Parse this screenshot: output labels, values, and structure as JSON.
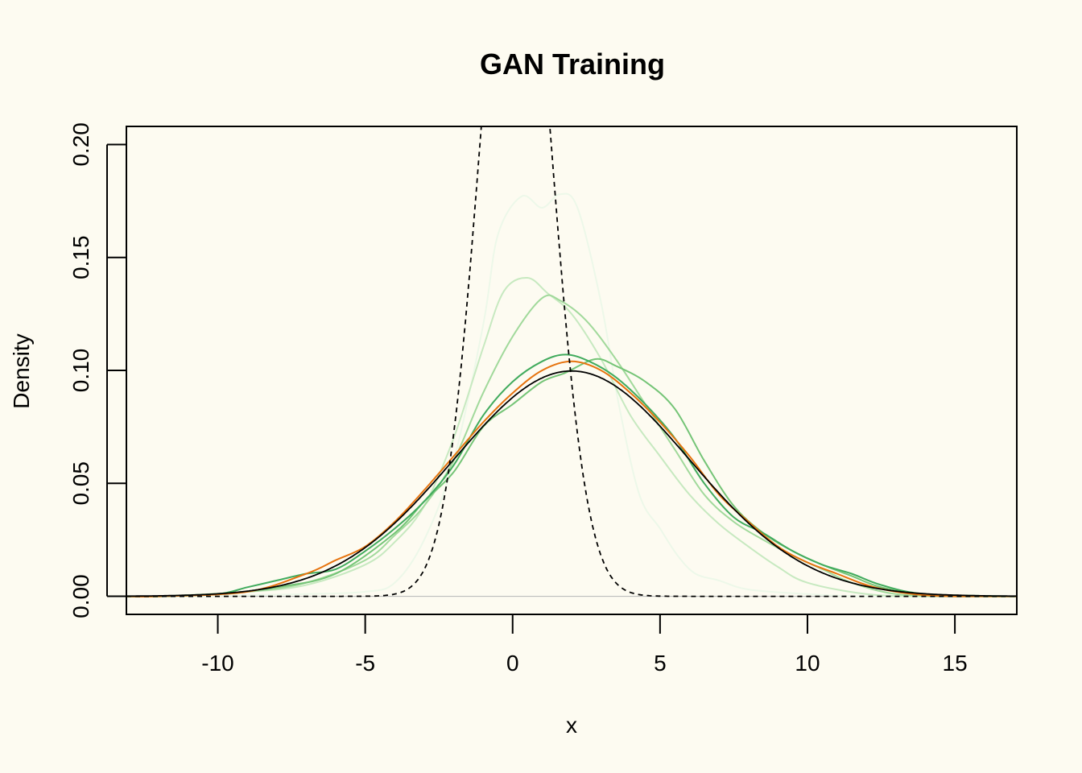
{
  "chart_data": {
    "type": "line",
    "title": "GAN Training",
    "xlabel": "x",
    "ylabel": "Density",
    "xlim": [
      -13.1,
      17.1
    ],
    "ylim": [
      -0.008,
      0.208
    ],
    "x_ticks": [
      -10,
      -5,
      0,
      5,
      10,
      15
    ],
    "x_tick_labels": [
      "-10",
      "-5",
      "0",
      "5",
      "10",
      "15"
    ],
    "y_ticks": [
      0,
      0.05,
      0.1,
      0.15,
      0.2
    ],
    "y_tick_labels": [
      "0.00",
      "0.05",
      "0.10",
      "0.15",
      "0.20"
    ],
    "grid": false,
    "legend": "none",
    "series": [
      {
        "role": "generator-iteration-1",
        "style": "solid",
        "color": "#edf8e9",
        "points": [
          [
            -11,
            0
          ],
          [
            -9,
            0.0005
          ],
          [
            -7,
            0.001
          ],
          [
            -5,
            0.002
          ],
          [
            -4,
            0.006
          ],
          [
            -3,
            0.025
          ],
          [
            -2,
            0.06
          ],
          [
            -1,
            0.12
          ],
          [
            -0.5,
            0.16
          ],
          [
            0.3,
            0.177
          ],
          [
            1,
            0.172
          ],
          [
            1.6,
            0.178
          ],
          [
            2.2,
            0.172
          ],
          [
            3,
            0.13
          ],
          [
            3.6,
            0.085
          ],
          [
            4.3,
            0.045
          ],
          [
            5,
            0.03
          ],
          [
            5.6,
            0.018
          ],
          [
            6.2,
            0.01
          ],
          [
            7,
            0.007
          ],
          [
            8,
            0.003
          ],
          [
            10,
            0.001
          ],
          [
            12,
            0
          ]
        ]
      },
      {
        "role": "generator-iteration-2",
        "style": "solid",
        "color": "#c7e9c0",
        "points": [
          [
            -12,
            0
          ],
          [
            -9,
            0.002
          ],
          [
            -7,
            0.005
          ],
          [
            -5,
            0.014
          ],
          [
            -4,
            0.024
          ],
          [
            -3,
            0.04
          ],
          [
            -2,
            0.07
          ],
          [
            -1,
            0.11
          ],
          [
            -0.3,
            0.135
          ],
          [
            0.5,
            0.141
          ],
          [
            1.2,
            0.134
          ],
          [
            2,
            0.125
          ],
          [
            3,
            0.105
          ],
          [
            4,
            0.08
          ],
          [
            5,
            0.062
          ],
          [
            6,
            0.045
          ],
          [
            7,
            0.032
          ],
          [
            8,
            0.022
          ],
          [
            9,
            0.013
          ],
          [
            10,
            0.006
          ],
          [
            12,
            0.001
          ],
          [
            14,
            0
          ]
        ]
      },
      {
        "role": "generator-iteration-3",
        "style": "solid",
        "color": "#a1d99b",
        "points": [
          [
            -12,
            0
          ],
          [
            -9,
            0.002
          ],
          [
            -7,
            0.006
          ],
          [
            -5,
            0.016
          ],
          [
            -4,
            0.027
          ],
          [
            -3,
            0.04
          ],
          [
            -2,
            0.06
          ],
          [
            -1,
            0.09
          ],
          [
            0,
            0.115
          ],
          [
            1,
            0.132
          ],
          [
            1.6,
            0.131
          ],
          [
            2.5,
            0.122
          ],
          [
            3.5,
            0.105
          ],
          [
            4.5,
            0.085
          ],
          [
            5.5,
            0.065
          ],
          [
            6.5,
            0.045
          ],
          [
            7.5,
            0.033
          ],
          [
            8.5,
            0.025
          ],
          [
            9.5,
            0.018
          ],
          [
            10.5,
            0.012
          ],
          [
            11.5,
            0.006
          ],
          [
            13,
            0.001
          ],
          [
            15,
            0
          ]
        ]
      },
      {
        "role": "generator-iteration-4",
        "style": "solid",
        "color": "#74c476",
        "points": [
          [
            -12,
            0
          ],
          [
            -10,
            0.001
          ],
          [
            -8,
            0.004
          ],
          [
            -6,
            0.01
          ],
          [
            -4,
            0.028
          ],
          [
            -3,
            0.042
          ],
          [
            -2,
            0.055
          ],
          [
            -1,
            0.075
          ],
          [
            0,
            0.085
          ],
          [
            1,
            0.095
          ],
          [
            1.8,
            0.099
          ],
          [
            2.8,
            0.105
          ],
          [
            3.5,
            0.102
          ],
          [
            4.5,
            0.095
          ],
          [
            5.5,
            0.083
          ],
          [
            6.5,
            0.06
          ],
          [
            7.5,
            0.04
          ],
          [
            8.5,
            0.028
          ],
          [
            9.5,
            0.02
          ],
          [
            10.5,
            0.014
          ],
          [
            11.5,
            0.009
          ],
          [
            12.5,
            0.004
          ],
          [
            14,
            0.001
          ],
          [
            16,
            0
          ]
        ]
      },
      {
        "role": "generator-iteration-5",
        "style": "solid",
        "color": "#41ab5d",
        "points": [
          [
            -12,
            0
          ],
          [
            -10,
            0.001
          ],
          [
            -9,
            0.004
          ],
          [
            -8,
            0.007
          ],
          [
            -7,
            0.01
          ],
          [
            -6,
            0.012
          ],
          [
            -5,
            0.02
          ],
          [
            -4,
            0.03
          ],
          [
            -3,
            0.042
          ],
          [
            -2,
            0.058
          ],
          [
            -1,
            0.08
          ],
          [
            0,
            0.095
          ],
          [
            1,
            0.104
          ],
          [
            1.8,
            0.107
          ],
          [
            2.6,
            0.104
          ],
          [
            3.5,
            0.097
          ],
          [
            4.5,
            0.085
          ],
          [
            5.5,
            0.07
          ],
          [
            6.5,
            0.05
          ],
          [
            7.5,
            0.035
          ],
          [
            8.5,
            0.028
          ],
          [
            9.5,
            0.02
          ],
          [
            10.5,
            0.014
          ],
          [
            11.5,
            0.01
          ],
          [
            12.5,
            0.005
          ],
          [
            14,
            0.001
          ],
          [
            17,
            0
          ]
        ]
      },
      {
        "role": "generator-final",
        "style": "solid",
        "color": "#e6730e",
        "points": [
          [
            -12,
            0
          ],
          [
            -9,
            0.002
          ],
          [
            -7,
            0.01
          ],
          [
            -6,
            0.016
          ],
          [
            -5,
            0.022
          ],
          [
            -4,
            0.033
          ],
          [
            -3,
            0.047
          ],
          [
            -2,
            0.062
          ],
          [
            -1,
            0.077
          ],
          [
            0,
            0.09
          ],
          [
            1,
            0.1
          ],
          [
            2,
            0.104
          ],
          [
            3,
            0.1
          ],
          [
            4,
            0.09
          ],
          [
            5,
            0.077
          ],
          [
            6,
            0.062
          ],
          [
            7,
            0.045
          ],
          [
            8,
            0.033
          ],
          [
            9,
            0.022
          ],
          [
            10,
            0.015
          ],
          [
            11,
            0.01
          ],
          [
            12,
            0.005
          ],
          [
            13,
            0.002
          ],
          [
            14,
            0.0005
          ],
          [
            15,
            0
          ]
        ]
      },
      {
        "role": "target-density",
        "style": "solid",
        "color": "#000000",
        "normal": {
          "mean": 2,
          "sd": 4
        }
      },
      {
        "role": "initial-density",
        "style": "dashed",
        "color": "#000000",
        "normal": {
          "mean": 0.1,
          "sd": 1.2
        }
      }
    ]
  }
}
